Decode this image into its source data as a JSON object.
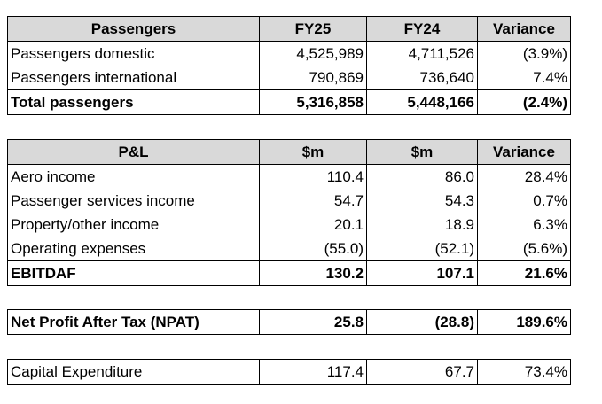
{
  "passengers": {
    "headers": [
      "Passengers",
      "FY25",
      "FY24",
      "Variance"
    ],
    "rows": [
      [
        "Passengers domestic",
        "4,525,989",
        "4,711,526",
        "(3.9%)"
      ],
      [
        "Passengers international",
        "790,869",
        "736,640",
        "7.4%"
      ]
    ],
    "total": [
      "Total passengers",
      "5,316,858",
      "5,448,166",
      "(2.4%)"
    ]
  },
  "pl": {
    "headers": [
      "P&L",
      "$m",
      "$m",
      "Variance"
    ],
    "rows": [
      [
        "Aero income",
        "110.4",
        "86.0",
        "28.4%"
      ],
      [
        "Passenger services income",
        "54.7",
        "54.3",
        "0.7%"
      ],
      [
        "Property/other income",
        "20.1",
        "18.9",
        "6.3%"
      ],
      [
        "Operating expenses",
        "(55.0)",
        "(52.1)",
        "(5.6%)"
      ]
    ],
    "total": [
      "EBITDAF",
      "130.2",
      "107.1",
      "21.6%"
    ]
  },
  "npat": [
    "Net Profit After Tax (NPAT)",
    "25.8",
    "(28.8)",
    "189.6%"
  ],
  "capex": [
    "Capital Expenditure",
    "117.4",
    "67.7",
    "73.4%"
  ]
}
